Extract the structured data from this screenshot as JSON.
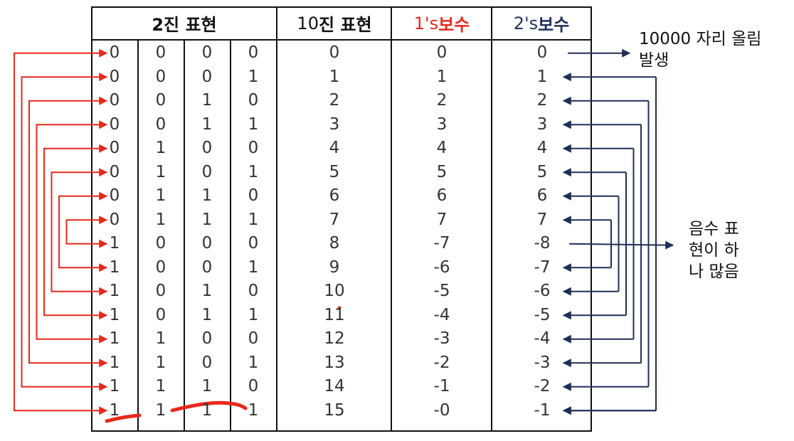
{
  "headers": {
    "binary": "2진 표현",
    "decimal_num": "10",
    "decimal_text": "진 표현",
    "ones_prefix": "1's ",
    "ones_suffix": "보수",
    "twos_prefix": "2's ",
    "twos_suffix": "보수"
  },
  "notes": {
    "carry": "10000 자리 올림\n발생",
    "negative": "음수 표\n현이 하\n나 많음"
  },
  "rows": [
    {
      "bits": [
        "0",
        "0",
        "0",
        "0"
      ],
      "dec": "0",
      "ones": "0",
      "twos": "0"
    },
    {
      "bits": [
        "0",
        "0",
        "0",
        "1"
      ],
      "dec": "1",
      "ones": "1",
      "twos": "1"
    },
    {
      "bits": [
        "0",
        "0",
        "1",
        "0"
      ],
      "dec": "2",
      "ones": "2",
      "twos": "2"
    },
    {
      "bits": [
        "0",
        "0",
        "1",
        "1"
      ],
      "dec": "3",
      "ones": "3",
      "twos": "3"
    },
    {
      "bits": [
        "0",
        "1",
        "0",
        "0"
      ],
      "dec": "4",
      "ones": "4",
      "twos": "4"
    },
    {
      "bits": [
        "0",
        "1",
        "0",
        "1"
      ],
      "dec": "5",
      "ones": "5",
      "twos": "5"
    },
    {
      "bits": [
        "0",
        "1",
        "1",
        "0"
      ],
      "dec": "6",
      "ones": "6",
      "twos": "6"
    },
    {
      "bits": [
        "0",
        "1",
        "1",
        "1"
      ],
      "dec": "7",
      "ones": "7",
      "twos": "7"
    },
    {
      "bits": [
        "1",
        "0",
        "0",
        "0"
      ],
      "dec": "8",
      "ones": "-7",
      "twos": "-8"
    },
    {
      "bits": [
        "1",
        "0",
        "0",
        "1"
      ],
      "dec": "9",
      "ones": "-6",
      "twos": "-7"
    },
    {
      "bits": [
        "1",
        "0",
        "1",
        "0"
      ],
      "dec": "10",
      "ones": "-5",
      "twos": "-6"
    },
    {
      "bits": [
        "1",
        "0",
        "1",
        "1"
      ],
      "dec": "11",
      "ones": "-4",
      "twos": "-5"
    },
    {
      "bits": [
        "1",
        "1",
        "0",
        "0"
      ],
      "dec": "12",
      "ones": "-3",
      "twos": "-4"
    },
    {
      "bits": [
        "1",
        "1",
        "0",
        "1"
      ],
      "dec": "13",
      "ones": "-2",
      "twos": "-3"
    },
    {
      "bits": [
        "1",
        "1",
        "1",
        "0"
      ],
      "dec": "14",
      "ones": "-1",
      "twos": "-2"
    },
    {
      "bits": [
        "1",
        "1",
        "1",
        "1"
      ],
      "dec": "15",
      "ones": "-0",
      "twos": "-1"
    }
  ],
  "colors": {
    "red": "#e8291c",
    "navy": "#1f2f57",
    "grid": "#111111"
  }
}
